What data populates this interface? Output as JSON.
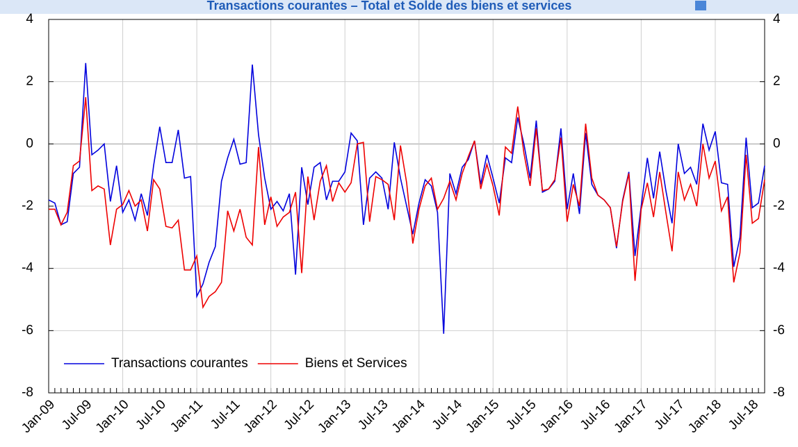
{
  "chart_data": {
    "type": "line",
    "title": "Transactions courantes – Total et Solde des biens et services",
    "categories": [
      "Jan-09",
      null,
      null,
      null,
      null,
      null,
      "Jul-09",
      null,
      null,
      null,
      null,
      null,
      "Jan-10",
      null,
      null,
      null,
      null,
      null,
      "Jul-10",
      null,
      null,
      null,
      null,
      null,
      "Jan-11",
      null,
      null,
      null,
      null,
      null,
      "Jul-11",
      null,
      null,
      null,
      null,
      null,
      "Jan-12",
      null,
      null,
      null,
      null,
      null,
      "Jul-12",
      null,
      null,
      null,
      null,
      null,
      "Jan-13",
      null,
      null,
      null,
      null,
      null,
      "Jul-13",
      null,
      null,
      null,
      null,
      null,
      "Jan-14",
      null,
      null,
      null,
      null,
      null,
      "Jul-14",
      null,
      null,
      null,
      null,
      null,
      "Jan-15",
      null,
      null,
      null,
      null,
      null,
      "Jul-15",
      null,
      null,
      null,
      null,
      null,
      "Jan-16",
      null,
      null,
      null,
      null,
      null,
      "Jul-16",
      null,
      null,
      null,
      null,
      null,
      "Jan-17",
      null,
      null,
      null,
      null,
      null,
      "Jul-17",
      null,
      null,
      null,
      null,
      null,
      "Jan-18",
      null,
      null,
      null,
      null,
      null,
      "Jul-18",
      null,
      null
    ],
    "series": [
      {
        "name": "Transactions courantes",
        "color": "#0000dd",
        "values": [
          -1.8,
          -1.9,
          -2.6,
          -2.5,
          -0.95,
          -0.75,
          2.6,
          -0.35,
          -0.2,
          0.0,
          -1.85,
          -0.7,
          -2.2,
          -1.8,
          -2.45,
          -1.6,
          -2.3,
          -0.7,
          0.55,
          -0.6,
          -0.6,
          0.45,
          -1.1,
          -1.05,
          -4.9,
          -4.5,
          -3.8,
          -3.3,
          -1.2,
          -0.45,
          0.15,
          -0.65,
          -0.6,
          2.55,
          0.3,
          -1.1,
          -2.1,
          -1.85,
          -2.15,
          -1.6,
          -4.2,
          -0.75,
          -1.95,
          -0.75,
          -0.6,
          -1.8,
          -1.2,
          -1.2,
          -0.9,
          0.35,
          0.1,
          -2.6,
          -1.1,
          -0.9,
          -1.1,
          -2.1,
          0.05,
          -1.1,
          -2.0,
          -2.9,
          -1.9,
          -1.15,
          -1.35,
          -2.2,
          -6.1,
          -0.95,
          -1.6,
          -0.75,
          -0.5,
          0.1,
          -1.3,
          -0.35,
          -1.1,
          -1.9,
          -0.45,
          -0.6,
          0.85,
          0.0,
          -1.1,
          0.75,
          -1.55,
          -1.45,
          -1.2,
          0.5,
          -2.1,
          -0.95,
          -2.25,
          0.35,
          -1.3,
          -1.65,
          -1.8,
          -2.05,
          -3.35,
          -1.8,
          -0.9,
          -3.6,
          -2.0,
          -0.45,
          -1.75,
          -0.25,
          -1.5,
          -2.55,
          0.0,
          -0.95,
          -0.75,
          -1.3,
          0.65,
          -0.2,
          0.4,
          -1.25,
          -1.3,
          -3.95,
          -3.0,
          0.2,
          -2.05,
          -1.9,
          -0.7
        ]
      },
      {
        "name": "Biens et Services",
        "color": "#ee0000",
        "values": [
          -2.1,
          -2.1,
          -2.6,
          -2.2,
          -0.7,
          -0.55,
          1.5,
          -1.5,
          -1.35,
          -1.45,
          -3.25,
          -2.1,
          -1.95,
          -1.5,
          -2.0,
          -1.8,
          -2.8,
          -1.15,
          -1.45,
          -2.65,
          -2.7,
          -2.45,
          -4.05,
          -4.05,
          -3.6,
          -5.25,
          -4.9,
          -4.75,
          -4.45,
          -2.15,
          -2.8,
          -2.1,
          -3.0,
          -3.25,
          -0.1,
          -2.6,
          -1.7,
          -2.65,
          -2.35,
          -2.2,
          -1.55,
          -4.15,
          -1.05,
          -2.45,
          -1.2,
          -0.7,
          -1.85,
          -1.25,
          -1.55,
          -1.25,
          0.0,
          0.05,
          -2.5,
          -1.05,
          -1.15,
          -1.3,
          -2.45,
          -0.05,
          -1.25,
          -3.2,
          -2.1,
          -1.35,
          -1.1,
          -2.1,
          -1.75,
          -1.2,
          -1.8,
          -0.95,
          -0.4,
          0.1,
          -1.45,
          -0.65,
          -1.35,
          -2.3,
          -0.1,
          -0.3,
          1.2,
          -0.3,
          -1.35,
          0.5,
          -1.5,
          -1.45,
          -1.15,
          0.2,
          -2.5,
          -1.3,
          -2.0,
          0.65,
          -1.1,
          -1.65,
          -1.8,
          -2.05,
          -3.3,
          -1.85,
          -0.95,
          -4.4,
          -2.1,
          -1.25,
          -2.35,
          -0.9,
          -2.2,
          -3.45,
          -0.9,
          -1.8,
          -1.3,
          -2.0,
          0.0,
          -1.1,
          -0.55,
          -2.15,
          -1.7,
          -4.45,
          -3.5,
          -0.35,
          -2.55,
          -2.4,
          -1.15
        ]
      }
    ],
    "ylim": [
      -8,
      4
    ],
    "yticks": [
      -8,
      -6,
      -4,
      -2,
      0,
      2,
      4
    ],
    "grid": true,
    "legend": "lower left"
  }
}
